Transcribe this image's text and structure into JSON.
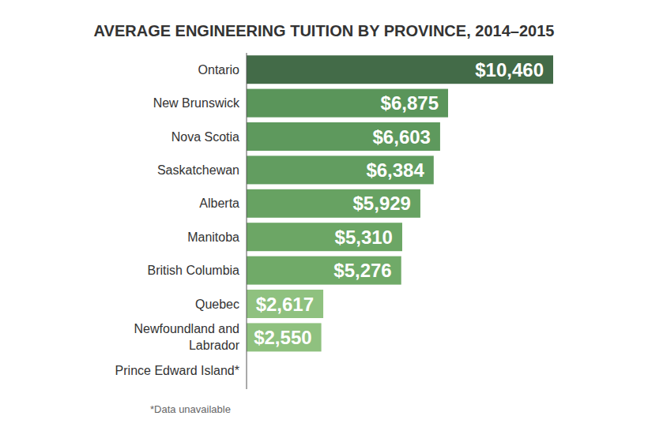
{
  "chart_data": {
    "type": "bar",
    "orientation": "horizontal",
    "title": "AVERAGE ENGINEERING TUITION BY PROVINCE, 2014–2015",
    "categories": [
      "Ontario",
      "New Brunswick",
      "Nova Scotia",
      "Saskatchewan",
      "Alberta",
      "Manitoba",
      "British Columbia",
      "Quebec",
      "Newfoundland and Labrador",
      "Prince Edward Island*"
    ],
    "values": [
      10460,
      6875,
      6603,
      6384,
      5929,
      5310,
      5276,
      2617,
      2550,
      null
    ],
    "value_labels": [
      "$10,460",
      "$6,875",
      "$6,603",
      "$6,384",
      "$5,929",
      "$5,310",
      "$5,276",
      "$2,617",
      "$2,550",
      null
    ],
    "colors": [
      "#436b48",
      "#5a955a",
      "#5e995d",
      "#629d60",
      "#67a262",
      "#6ca665",
      "#70aa68",
      "#8fc17f",
      "#8fc17f",
      null
    ],
    "xlim": [
      0,
      10460
    ],
    "data_labels": true,
    "tick_labels": false,
    "grid": false,
    "footnote": "*Data unavailable"
  }
}
